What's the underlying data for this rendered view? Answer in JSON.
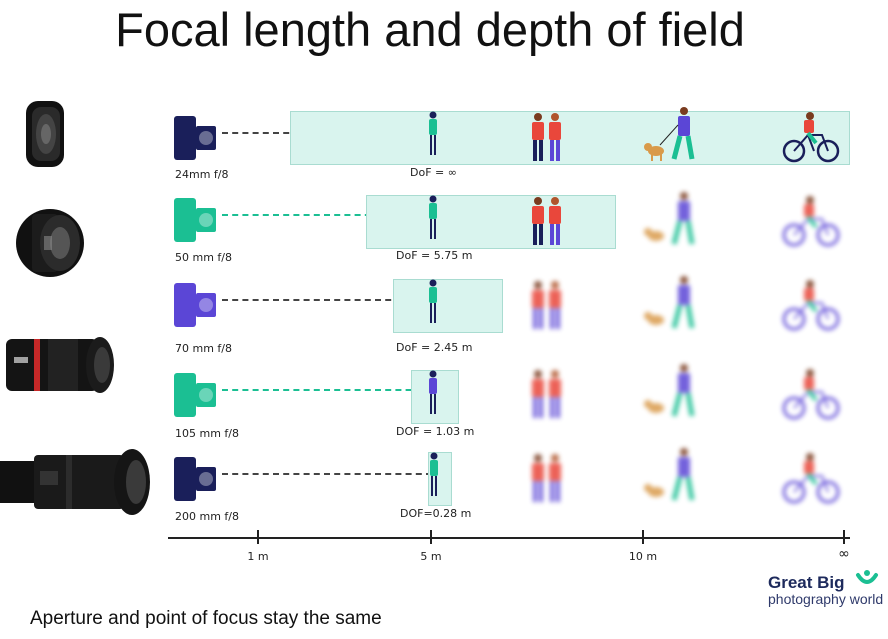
{
  "title": "Focal length and depth of field",
  "caption": "Aperture and point of focus stay the same",
  "colors": {
    "dof_fill": "#d9f4ee",
    "navy": "#1a1f5a",
    "teal": "#1bbf93",
    "purple": "#5b46d6",
    "red": "#e9473b"
  },
  "rows": [
    {
      "camera_label": "24mm f/8",
      "dof_label": "DoF = ∞",
      "camera_color": "navy",
      "sharp_to": "infinity"
    },
    {
      "camera_label": "50 mm f/8",
      "dof_label": "DoF = 5.75 m",
      "camera_color": "teal",
      "sharp_to": "couple"
    },
    {
      "camera_label": "70 mm f/8",
      "dof_label": "DoF = 2.45 m",
      "camera_color": "purple",
      "sharp_to": "subject"
    },
    {
      "camera_label": "105 mm f/8",
      "dof_label": "DOF = 1.03 m",
      "camera_color": "teal",
      "sharp_to": "subject"
    },
    {
      "camera_label": "200 mm  f/8",
      "dof_label": "DOF=0.28 m",
      "camera_color": "navy",
      "sharp_to": "subject"
    }
  ],
  "axis": {
    "ticks": [
      "1 m",
      "5 m",
      "10 m",
      "∞"
    ]
  },
  "logo": {
    "line1": "Great Big",
    "line2": "photography world"
  }
}
